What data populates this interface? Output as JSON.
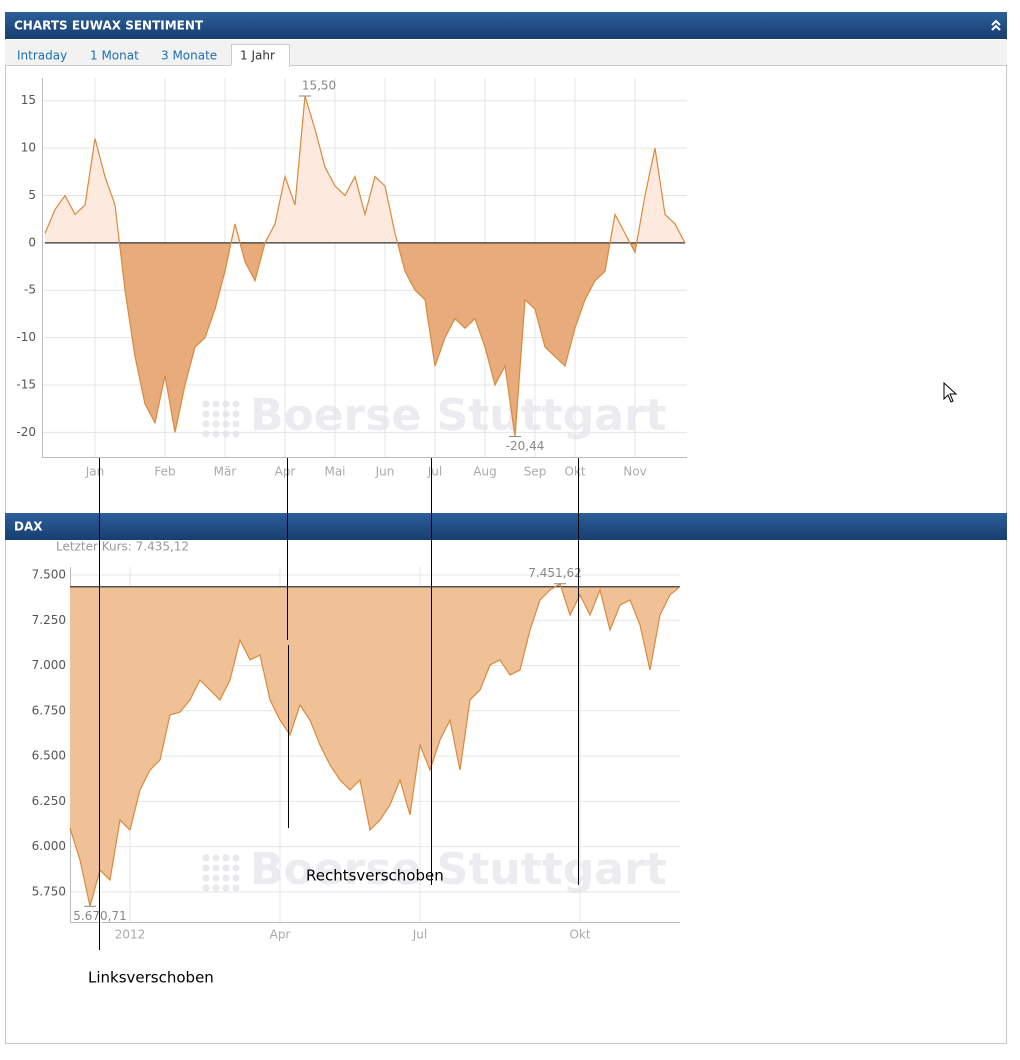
{
  "header": {
    "title": "CHARTS EUWAX SENTIMENT"
  },
  "tabs": [
    "Intraday",
    "1 Monat",
    "3 Monate",
    "1 Jahr"
  ],
  "dax_header": {
    "title": "DAX"
  },
  "annotations": [
    "Linksverschoben",
    "Rechtsverschoben"
  ],
  "chart_data": [
    {
      "type": "area",
      "watermark": "Boerse Stuttgart",
      "categories": [
        null,
        null,
        null,
        null,
        null,
        "Jan",
        null,
        null,
        null,
        null,
        null,
        null,
        "Feb",
        null,
        null,
        null,
        null,
        null,
        "Mär",
        null,
        null,
        null,
        null,
        null,
        "Apr",
        null,
        null,
        null,
        null,
        "Mai",
        null,
        null,
        null,
        null,
        "Jun",
        null,
        null,
        null,
        null,
        "Jul",
        null,
        null,
        null,
        null,
        "Aug",
        null,
        null,
        null,
        null,
        "Sep",
        null,
        null,
        null,
        "Okt",
        null,
        null,
        null,
        null,
        null,
        "Nov",
        null,
        null,
        null,
        null,
        null
      ],
      "values": [
        1,
        3.5,
        5,
        3,
        4,
        11,
        7,
        4,
        -5,
        -12,
        -17,
        -19,
        -14,
        -20,
        -15,
        -11,
        -10,
        -7,
        -3,
        2,
        -2,
        -4,
        0,
        2,
        7,
        4,
        15.5,
        12,
        8,
        6,
        5,
        7,
        3,
        7,
        6,
        1,
        -3,
        -5,
        -6,
        -13,
        -10,
        -8,
        -9,
        -8,
        -11,
        -15,
        -13,
        -20.44,
        -6,
        -7,
        -11,
        -12,
        -13,
        -9,
        -6,
        -4,
        -3,
        3,
        1,
        -1,
        5,
        10,
        3,
        2,
        0
      ],
      "value_labels": [
        null,
        null,
        null,
        null,
        null,
        null,
        null,
        null,
        null,
        null,
        null,
        null,
        null,
        null,
        null,
        null,
        null,
        null,
        null,
        null,
        null,
        null,
        null,
        null,
        null,
        null,
        "15,50",
        null,
        null,
        null,
        null,
        null,
        null,
        null,
        null,
        null,
        null,
        null,
        null,
        null,
        null,
        null,
        null,
        null,
        null,
        null,
        null,
        "-20,44",
        null,
        null,
        null,
        null,
        null,
        null,
        null,
        null,
        null,
        null,
        null,
        null,
        null,
        null,
        null,
        null,
        null
      ],
      "baseline": 0,
      "line_color": "#d98a3c",
      "fill_above": "#fde9dd",
      "fill_below": "#e8ab7b",
      "ylim": [
        -22.6,
        17.4
      ],
      "yticks": [
        -20,
        -15,
        -10,
        -5,
        0,
        5,
        10,
        15
      ],
      "grid": true
    },
    {
      "type": "area",
      "watermark": "Boerse Stuttgart",
      "subtitle": "Letzter Kurs: 7.435,12",
      "categories": [
        null,
        null,
        null,
        null,
        null,
        null,
        "2012",
        null,
        null,
        null,
        null,
        null,
        null,
        null,
        null,
        null,
        null,
        null,
        null,
        null,
        null,
        "Apr",
        null,
        null,
        null,
        null,
        null,
        null,
        null,
        null,
        null,
        null,
        null,
        null,
        null,
        "Jul",
        null,
        null,
        null,
        null,
        null,
        null,
        null,
        null,
        null,
        null,
        null,
        null,
        null,
        null,
        null,
        "Okt",
        null,
        null,
        null,
        null,
        null,
        null,
        null,
        null,
        null,
        null
      ],
      "values": [
        6103,
        5926,
        5670.71,
        5871,
        5816,
        6147,
        6092,
        6313,
        6423,
        6479,
        6727,
        6743,
        6810,
        6920,
        6865,
        6810,
        6920,
        7141,
        7031,
        7058,
        6810,
        6699,
        6617,
        6782,
        6699,
        6561,
        6451,
        6368,
        6313,
        6368,
        6092,
        6147,
        6230,
        6368,
        6175,
        6561,
        6423,
        6589,
        6699,
        6423,
        6810,
        6865,
        7003,
        7031,
        6948,
        6975,
        7196,
        7362,
        7417,
        7451.62,
        7279,
        7390,
        7279,
        7417,
        7196,
        7334,
        7362,
        7224,
        6975,
        7279,
        7390,
        7435.12
      ],
      "value_labels": [
        null,
        null,
        "5.670,71",
        null,
        null,
        null,
        null,
        null,
        null,
        null,
        null,
        null,
        null,
        null,
        null,
        null,
        null,
        null,
        null,
        null,
        null,
        null,
        null,
        null,
        null,
        null,
        null,
        null,
        null,
        null,
        null,
        null,
        null,
        null,
        null,
        null,
        null,
        null,
        null,
        null,
        null,
        null,
        null,
        null,
        null,
        null,
        null,
        null,
        null,
        "7.451,62",
        null,
        null,
        null,
        null,
        null,
        null,
        null,
        null,
        null,
        null,
        null,
        null
      ],
      "baseline": 7435.12,
      "line_color": "#d98a3c",
      "fill_above": "#f0c197",
      "fill_below": "#f0c197",
      "ylim": [
        5584,
        7544
      ],
      "yticks": [
        {
          "value": 5750,
          "label": "5.750"
        },
        {
          "value": 6000,
          "label": "6.000"
        },
        {
          "value": 6250,
          "label": "6.250"
        },
        {
          "value": 6500,
          "label": "6.500"
        },
        {
          "value": 6750,
          "label": "6.750"
        },
        {
          "value": 7000,
          "label": "7.000"
        },
        {
          "value": 7250,
          "label": "7.250"
        },
        {
          "value": 7500,
          "label": "7.500"
        }
      ],
      "grid": true
    }
  ]
}
